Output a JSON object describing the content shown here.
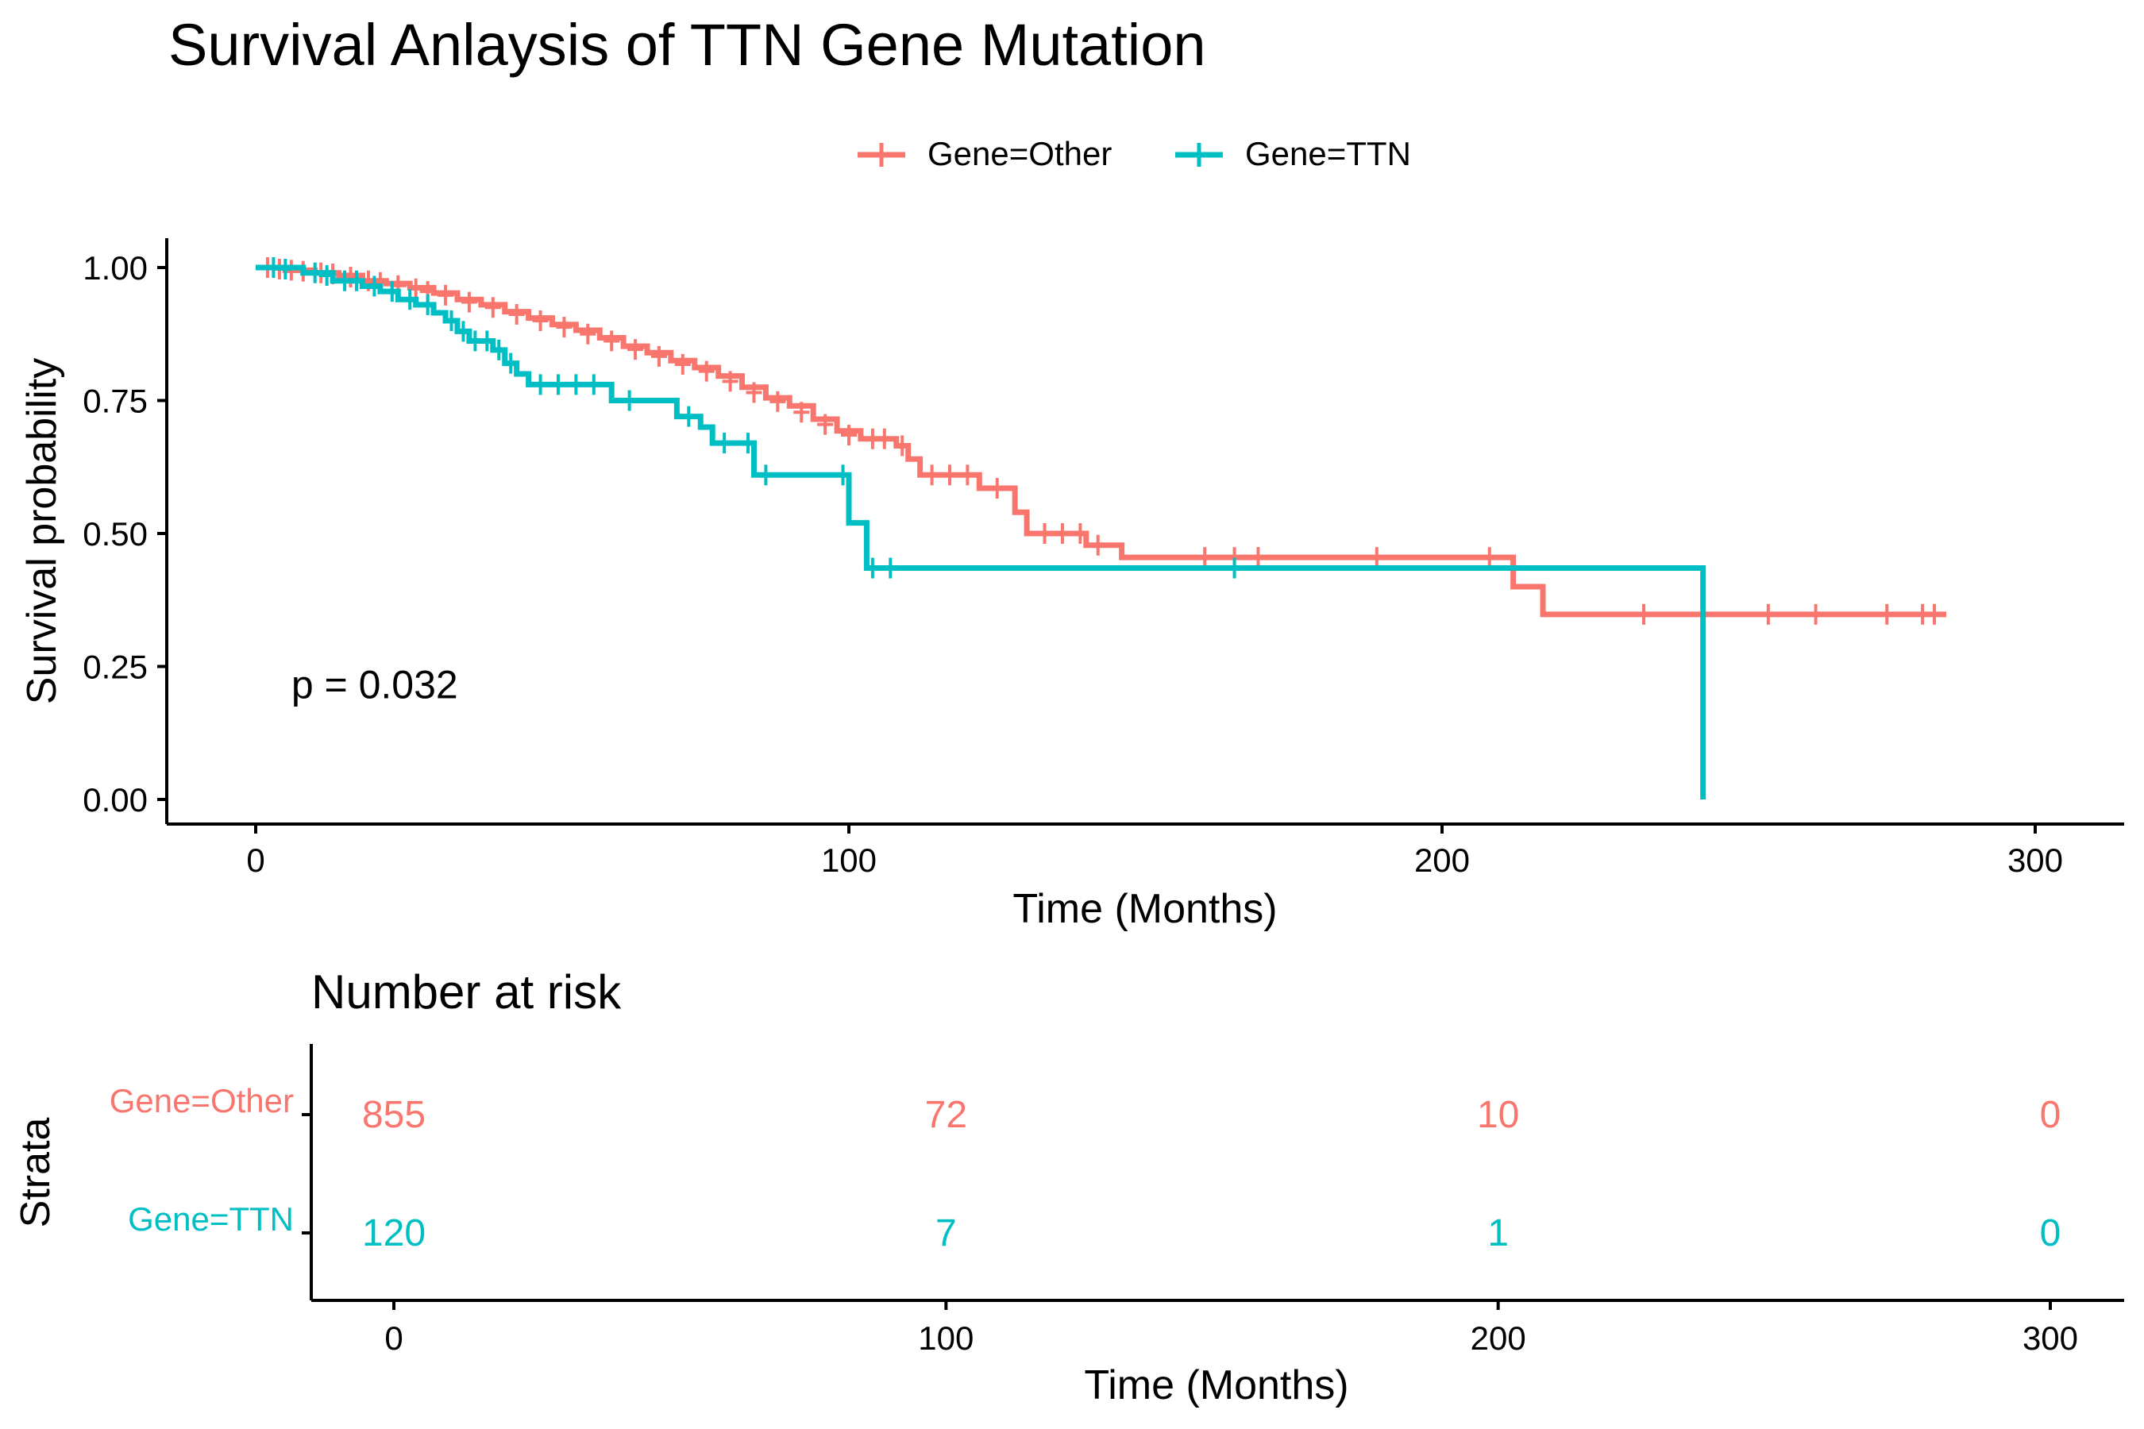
{
  "chart_data": [
    {
      "type": "line",
      "subtype": "kaplan-meier",
      "title": "Survival Anlaysis of TTN Gene Mutation",
      "xlabel": "Time (Months)",
      "ylabel": "Survival probability",
      "xlim": [
        -15,
        315
      ],
      "ylim": [
        -0.05,
        1.05
      ],
      "xticks": [
        0,
        100,
        200,
        300
      ],
      "yticks": [
        0,
        0.25,
        0.5,
        0.75,
        1.0
      ],
      "ytick_labels": [
        "0.00",
        "0.25",
        "0.50",
        "0.75",
        "1.00"
      ],
      "grid": false,
      "legend": {
        "placement": "top",
        "entries": [
          "Gene=Other",
          "Gene=TTN"
        ]
      },
      "annotation": "p = 0.032",
      "annotation_pos": {
        "x": 6,
        "y": 0.19
      },
      "series": [
        {
          "name": "Gene=Other",
          "color": "#F8766D",
          "steps": [
            [
              0,
              1.0
            ],
            [
              5,
              0.995
            ],
            [
              10,
              0.99
            ],
            [
              14,
              0.985
            ],
            [
              18,
              0.975
            ],
            [
              22,
              0.97
            ],
            [
              26,
              0.962
            ],
            [
              30,
              0.952
            ],
            [
              34,
              0.94
            ],
            [
              38,
              0.93
            ],
            [
              42,
              0.917
            ],
            [
              46,
              0.905
            ],
            [
              50,
              0.893
            ],
            [
              54,
              0.882
            ],
            [
              58,
              0.868
            ],
            [
              62,
              0.852
            ],
            [
              66,
              0.84
            ],
            [
              70,
              0.825
            ],
            [
              74,
              0.812
            ],
            [
              78,
              0.796
            ],
            [
              82,
              0.775
            ],
            [
              86,
              0.755
            ],
            [
              90,
              0.74
            ],
            [
              94,
              0.715
            ],
            [
              98,
              0.693
            ],
            [
              102,
              0.678
            ],
            [
              108,
              0.665
            ],
            [
              110,
              0.64
            ],
            [
              112,
              0.61
            ],
            [
              122,
              0.585
            ],
            [
              128,
              0.54
            ],
            [
              130,
              0.5
            ],
            [
              140,
              0.478
            ],
            [
              146,
              0.455
            ],
            [
              212,
              0.4
            ],
            [
              217,
              0.348
            ],
            [
              285,
              0.348
            ]
          ],
          "censors": [
            [
              2,
              1.0
            ],
            [
              4,
              0.997
            ],
            [
              6,
              0.995
            ],
            [
              8,
              0.993
            ],
            [
              11,
              0.99
            ],
            [
              13,
              0.988
            ],
            [
              16,
              0.982
            ],
            [
              19,
              0.975
            ],
            [
              21,
              0.972
            ],
            [
              24,
              0.966
            ],
            [
              27,
              0.96
            ],
            [
              29,
              0.955
            ],
            [
              32,
              0.948
            ],
            [
              36,
              0.935
            ],
            [
              40,
              0.925
            ],
            [
              44,
              0.912
            ],
            [
              48,
              0.9
            ],
            [
              52,
              0.888
            ],
            [
              56,
              0.875
            ],
            [
              60,
              0.862
            ],
            [
              64,
              0.846
            ],
            [
              68,
              0.833
            ],
            [
              72,
              0.818
            ],
            [
              76,
              0.805
            ],
            [
              80,
              0.786
            ],
            [
              84,
              0.765
            ],
            [
              88,
              0.748
            ],
            [
              92,
              0.728
            ],
            [
              96,
              0.705
            ],
            [
              100,
              0.685
            ],
            [
              104,
              0.678
            ],
            [
              106,
              0.678
            ],
            [
              109,
              0.665
            ],
            [
              114,
              0.61
            ],
            [
              117,
              0.61
            ],
            [
              120,
              0.61
            ],
            [
              125,
              0.585
            ],
            [
              133,
              0.5
            ],
            [
              136,
              0.5
            ],
            [
              139,
              0.5
            ],
            [
              142,
              0.478
            ],
            [
              160,
              0.455
            ],
            [
              165,
              0.455
            ],
            [
              169,
              0.455
            ],
            [
              189,
              0.455
            ],
            [
              208,
              0.455
            ],
            [
              234,
              0.348
            ],
            [
              255,
              0.348
            ],
            [
              263,
              0.348
            ],
            [
              275,
              0.348
            ],
            [
              281,
              0.348
            ],
            [
              283,
              0.348
            ]
          ]
        },
        {
          "name": "Gene=TTN",
          "color": "#00BFC4",
          "steps": [
            [
              0,
              1.0
            ],
            [
              8,
              0.99
            ],
            [
              13,
              0.975
            ],
            [
              18,
              0.965
            ],
            [
              21,
              0.955
            ],
            [
              24,
              0.94
            ],
            [
              27,
              0.93
            ],
            [
              30,
              0.915
            ],
            [
              32,
              0.9
            ],
            [
              34,
              0.88
            ],
            [
              36,
              0.862
            ],
            [
              40,
              0.845
            ],
            [
              42,
              0.82
            ],
            [
              44,
              0.8
            ],
            [
              46,
              0.78
            ],
            [
              60,
              0.75
            ],
            [
              71,
              0.72
            ],
            [
              75,
              0.7
            ],
            [
              77,
              0.67
            ],
            [
              84,
              0.61
            ],
            [
              100,
              0.52
            ],
            [
              103,
              0.435
            ],
            [
              244,
              0.435
            ],
            [
              244,
              0.0
            ]
          ],
          "censors": [
            [
              3,
              1.0
            ],
            [
              5,
              0.997
            ],
            [
              10,
              0.99
            ],
            [
              12,
              0.985
            ],
            [
              15,
              0.975
            ],
            [
              17,
              0.975
            ],
            [
              20,
              0.965
            ],
            [
              23,
              0.955
            ],
            [
              26,
              0.94
            ],
            [
              29,
              0.93
            ],
            [
              33,
              0.9
            ],
            [
              35,
              0.88
            ],
            [
              37,
              0.862
            ],
            [
              39,
              0.862
            ],
            [
              41,
              0.845
            ],
            [
              43,
              0.82
            ],
            [
              48,
              0.78
            ],
            [
              51,
              0.78
            ],
            [
              54,
              0.78
            ],
            [
              57,
              0.78
            ],
            [
              63,
              0.75
            ],
            [
              73,
              0.72
            ],
            [
              79,
              0.67
            ],
            [
              83,
              0.67
            ],
            [
              86,
              0.61
            ],
            [
              99,
              0.61
            ],
            [
              104,
              0.435
            ],
            [
              107,
              0.435
            ],
            [
              165,
              0.435
            ]
          ]
        }
      ]
    },
    {
      "type": "table",
      "title": "Number at risk",
      "xlabel": "Time (Months)",
      "ylabel": "Strata",
      "xlim": [
        -15,
        315
      ],
      "xticks": [
        0,
        100,
        200,
        300
      ],
      "rows": [
        {
          "label": "Gene=Other",
          "color": "#F8766D",
          "values": [
            855,
            72,
            10,
            0
          ]
        },
        {
          "label": "Gene=TTN",
          "color": "#00BFC4",
          "values": [
            120,
            7,
            1,
            0
          ]
        }
      ]
    }
  ]
}
